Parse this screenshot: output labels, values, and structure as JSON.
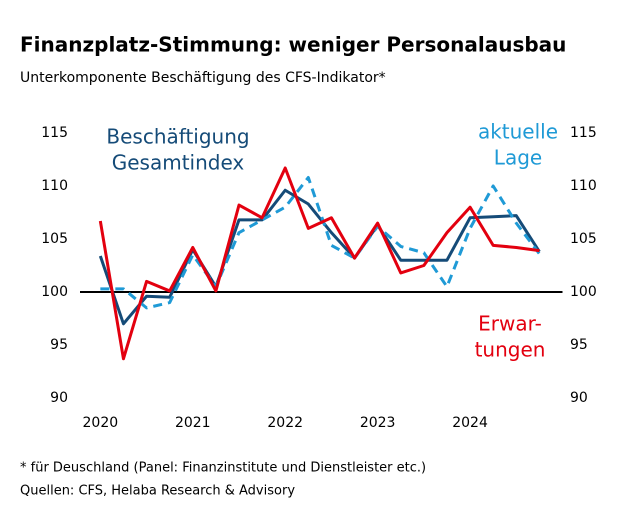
{
  "chart_data": {
    "type": "line",
    "title": "Finanzplatz-Stimmung: weniger Personalausbau",
    "subtitle": "Unterkomponente Beschäftigung des CFS-Indikator*",
    "footnote": "* für Deuschland (Panel: Finanzinstitute und Dienstleister etc.)",
    "source": "Quellen: CFS, Helaba Research & Advisory",
    "x": [
      2020,
      2020.25,
      2020.5,
      2020.75,
      2021,
      2021.25,
      2021.5,
      2021.75,
      2022,
      2022.25,
      2022.5,
      2022.75,
      2023,
      2023.25,
      2023.5,
      2023.75,
      2024,
      2024.25,
      2024.5,
      2024.75
    ],
    "xlim": [
      2019.78,
      2025
    ],
    "xticks": [
      2020,
      2021,
      2022,
      2023,
      2024
    ],
    "ylim": [
      90,
      115
    ],
    "yticks": [
      90,
      95,
      100,
      105,
      110,
      115
    ],
    "y2lim": [
      90,
      115
    ],
    "y2ticks": [
      90,
      95,
      100,
      105,
      110,
      115
    ],
    "reference_line": 100,
    "series": [
      {
        "name": "Beschäftigung Gesamtindex",
        "color": "#154b78",
        "dash": false,
        "values": [
          103.4,
          97,
          99.6,
          99.5,
          104,
          100.5,
          106.8,
          106.8,
          109.6,
          108.3,
          105.6,
          103.2,
          106.3,
          103,
          103,
          103,
          107,
          107.1,
          107.2,
          103.8
        ]
      },
      {
        "name": "aktuelle Lage",
        "color": "#1f9ad6",
        "dash": true,
        "values": [
          100.3,
          100.3,
          98.5,
          99,
          103.5,
          100.5,
          105.6,
          106.8,
          108,
          110.8,
          104.4,
          103.2,
          106.2,
          104.3,
          103.7,
          100.5,
          106,
          110,
          106.5,
          103.6
        ]
      },
      {
        "name": "Erwartungen",
        "color": "#e3000f",
        "dash": false,
        "values": [
          106.7,
          93.7,
          101,
          100.1,
          104.2,
          100.1,
          108.2,
          107,
          111.7,
          106,
          107,
          103.2,
          106.5,
          101.8,
          102.5,
          105.6,
          108,
          104.4,
          104.2,
          103.9
        ]
      }
    ],
    "annotations": [
      {
        "lines": [
          "Beschäftigung",
          "Gesamtindex"
        ],
        "color": "#154b78"
      },
      {
        "lines": [
          "aktuelle",
          "Lage"
        ],
        "color": "#1f9ad6"
      },
      {
        "lines": [
          "Erwar-",
          "tungen"
        ],
        "color": "#e3000f"
      }
    ]
  }
}
